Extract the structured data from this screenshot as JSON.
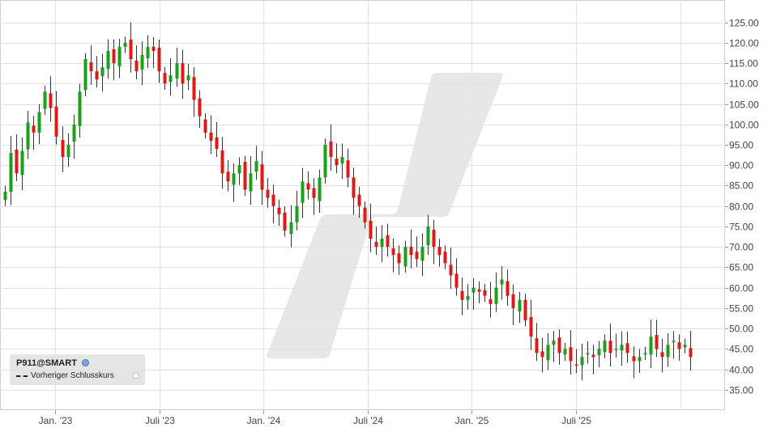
{
  "chart_data": {
    "type": "candlestick",
    "instrument": "P911@SMART",
    "y_axis": {
      "side": "right",
      "ylim": [
        30,
        127.5
      ],
      "ticks": [
        "125.00",
        "120.00",
        "115.00",
        "110.00",
        "105.00",
        "100.00",
        "95.00",
        "90.00",
        "85.00",
        "80.00",
        "75.00",
        "70.00",
        "65.00",
        "60.00",
        "55.00",
        "50.00",
        "45.00",
        "40.00",
        "35.00"
      ]
    },
    "x_axis": {
      "labels": [
        "Jan. '23",
        "Juli '23",
        "Jan. '24",
        "Juli '24",
        "Jan. '25",
        "Juli '25"
      ]
    },
    "grid": true,
    "legend": {
      "position": "bottom-left",
      "entries": [
        "Vorheriger Schlusskurs"
      ]
    },
    "colors": {
      "up": "#1aa01a",
      "down": "#e01818",
      "wick": "#333333",
      "grid": "#e2e2e2",
      "watermark": "#e4e4e4"
    },
    "weekly_close": [
      83.5,
      93,
      88,
      93.5,
      100.5,
      98,
      103,
      108,
      104,
      97,
      92,
      95,
      100,
      108,
      116,
      113,
      111,
      114,
      118,
      115,
      119,
      120,
      116,
      113,
      117,
      119,
      118,
      113,
      110,
      112,
      115,
      110,
      112,
      106,
      102,
      98,
      96,
      94,
      88,
      86,
      88,
      90,
      84,
      88,
      91,
      84,
      82,
      80,
      78,
      74,
      76,
      80,
      86,
      84,
      82,
      87,
      95,
      92,
      90,
      92,
      87,
      82,
      80,
      76,
      72,
      70,
      72,
      70,
      68,
      66,
      70,
      68,
      67,
      70,
      75,
      70,
      68,
      66,
      63,
      60,
      57,
      58,
      60,
      59,
      58,
      56,
      60,
      62,
      58,
      55,
      57,
      52,
      48,
      44,
      43,
      46,
      47,
      44,
      45,
      42,
      41,
      43,
      44,
      43,
      45,
      47,
      44,
      45,
      46,
      44,
      42,
      43,
      44,
      48,
      45,
      43,
      46,
      47,
      45,
      46,
      43
    ],
    "annotations": []
  },
  "legend": {
    "title": "P911@SMART",
    "entry": "Vorheriger Schlusskurs"
  }
}
